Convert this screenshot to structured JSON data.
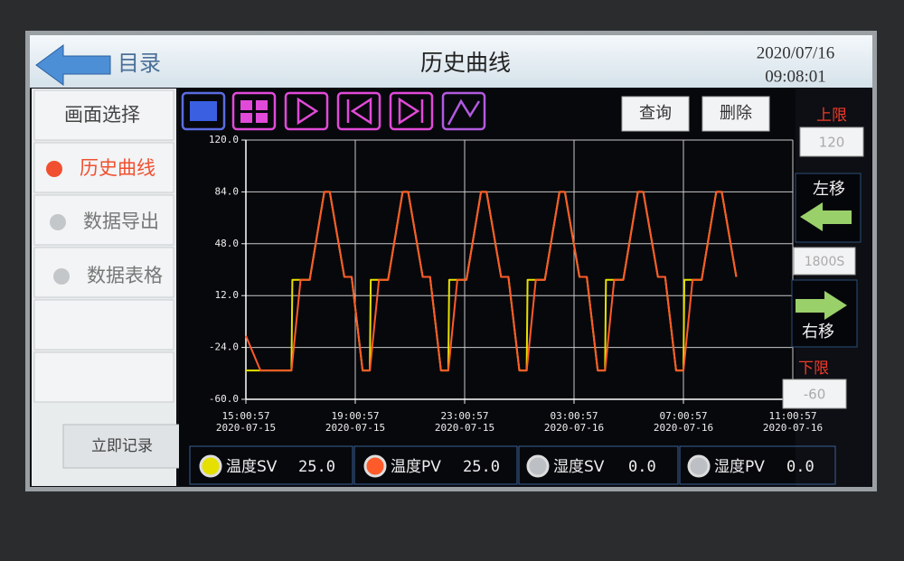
{
  "header": {
    "back": "目录",
    "title": "历史曲线",
    "date": "2020/07/16",
    "time": "09:08:01"
  },
  "menu": [
    "画面选择",
    "历史曲线",
    "数据导出",
    "数据表格"
  ],
  "record_button": "立即记录",
  "buttons": [
    "查询",
    "删除"
  ],
  "side": {
    "upper_label": "上限",
    "upper_value": "120",
    "left": "左移",
    "span": "1800S",
    "right": "右移",
    "lower_label": "下限",
    "lower_value": "-60"
  },
  "chart_data": {
    "type": "line",
    "x": [
      "2020-07-15 15:00:57",
      "2020-07-15 15:32:57",
      "2020-07-15 16:40:57",
      "2020-07-15 16:42:57",
      "2020-07-15 17:00:57",
      "2020-07-15 17:20:57",
      "2020-07-15 17:52:57",
      "2020-07-15 18:04:57",
      "2020-07-15 18:36:57",
      "2020-07-15 18:52:57",
      "2020-07-15 19:16:57",
      "2020-07-15 19:32:57",
      "2020-07-15 19:34:57",
      "2020-07-15 19:52:57",
      "2020-07-15 20:12:57",
      "2020-07-15 20:44:57",
      "2020-07-15 20:56:57",
      "2020-07-15 21:28:57",
      "2020-07-15 21:44:57",
      "2020-07-15 22:08:57",
      "2020-07-15 22:24:57",
      "2020-07-15 22:26:57",
      "2020-07-15 22:44:57",
      "2020-07-15 23:04:57",
      "2020-07-15 23:36:57",
      "2020-07-15 23:48:57",
      "2020-07-16 00:20:57",
      "2020-07-16 00:36:57",
      "2020-07-16 01:00:57",
      "2020-07-16 01:16:57",
      "2020-07-16 01:18:57",
      "2020-07-16 01:36:57",
      "2020-07-16 01:56:57",
      "2020-07-16 02:28:57",
      "2020-07-16 02:40:57",
      "2020-07-16 03:12:57",
      "2020-07-16 03:28:57",
      "2020-07-16 03:52:57",
      "2020-07-16 04:08:57",
      "2020-07-16 04:10:57",
      "2020-07-16 04:28:57",
      "2020-07-16 04:48:57",
      "2020-07-16 05:20:57",
      "2020-07-16 05:32:57",
      "2020-07-16 06:04:57",
      "2020-07-16 06:20:57",
      "2020-07-16 06:44:57",
      "2020-07-16 07:00:57",
      "2020-07-16 07:02:57",
      "2020-07-16 07:20:57",
      "2020-07-16 07:40:57",
      "2020-07-16 08:12:57",
      "2020-07-16 08:24:57",
      "2020-07-16 08:56:57"
    ],
    "series": [
      {
        "name": "温度SV",
        "color": "#e6e000",
        "reading": "25.0",
        "values": [
          -40,
          -40,
          -40,
          23,
          23,
          23,
          84,
          84,
          25,
          25,
          -40,
          -40,
          23,
          23,
          23,
          84,
          84,
          25,
          25,
          -40,
          -40,
          23,
          23,
          23,
          84,
          84,
          25,
          25,
          -40,
          -40,
          23,
          23,
          23,
          84,
          84,
          25,
          25,
          -40,
          -40,
          23,
          23,
          23,
          84,
          84,
          25,
          25,
          -40,
          -40,
          23,
          23,
          23,
          84,
          84,
          25
        ]
      },
      {
        "name": "温度PV",
        "color": "#ff5a2a",
        "reading": "25.0",
        "values": [
          -16,
          -40,
          -40,
          -34,
          23,
          23,
          84,
          84,
          25,
          25,
          -40,
          -40,
          -34,
          23,
          23,
          84,
          84,
          25,
          25,
          -40,
          -40,
          -34,
          23,
          23,
          84,
          84,
          25,
          25,
          -40,
          -40,
          -34,
          23,
          23,
          84,
          84,
          25,
          25,
          -40,
          -40,
          -34,
          23,
          23,
          84,
          84,
          25,
          25,
          -40,
          -40,
          -34,
          23,
          23,
          84,
          84,
          25
        ]
      }
    ],
    "idle_channels": [
      {
        "name": "湿度SV",
        "reading": "0.0"
      },
      {
        "name": "湿度PV",
        "reading": "0.0"
      }
    ],
    "xlim": [
      "2020-07-15 15:00:57",
      "2020-07-16 11:00:57"
    ],
    "xticks": [
      {
        "value": "2020-07-15 15:00:57",
        "label": [
          "15:00:57",
          "2020-07-15"
        ]
      },
      {
        "value": "2020-07-15 19:00:57",
        "label": [
          "19:00:57",
          "2020-07-15"
        ]
      },
      {
        "value": "2020-07-15 23:00:57",
        "label": [
          "23:00:57",
          "2020-07-15"
        ]
      },
      {
        "value": "2020-07-16 03:00:57",
        "label": [
          "03:00:57",
          "2020-07-16"
        ]
      },
      {
        "value": "2020-07-16 07:00:57",
        "label": [
          "07:00:57",
          "2020-07-16"
        ]
      },
      {
        "value": "2020-07-16 11:00:57",
        "label": [
          "11:00:57",
          "2020-07-16"
        ]
      }
    ],
    "ylim": [
      -60,
      120
    ],
    "yticks": [
      {
        "value": -60,
        "label": "-60.0"
      },
      {
        "value": -24,
        "label": "-24.0"
      },
      {
        "value": 12,
        "label": "12.0"
      },
      {
        "value": 48,
        "label": "48.0"
      },
      {
        "value": 84,
        "label": "84.0"
      },
      {
        "value": 120,
        "label": "120.0"
      }
    ],
    "grid": true
  }
}
